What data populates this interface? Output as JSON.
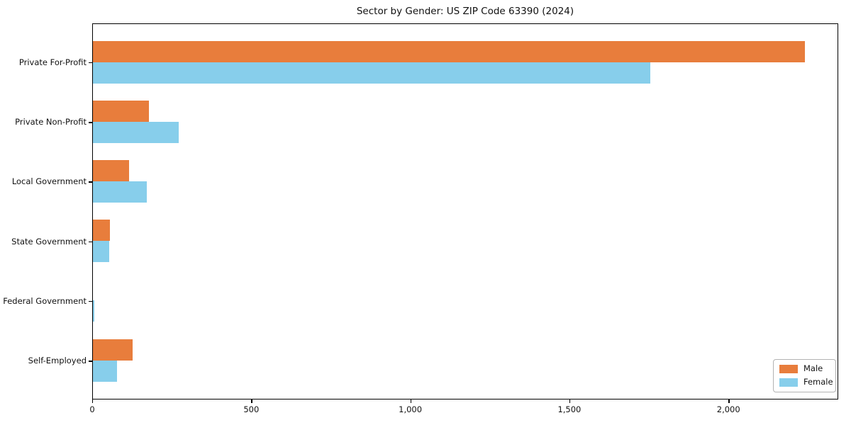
{
  "chart_data": {
    "type": "bar",
    "orientation": "horizontal",
    "title": "Sector by Gender: US ZIP Code 63390 (2024)",
    "categories": [
      "Private For-Profit",
      "Private Non-Profit",
      "Local Government",
      "State Government",
      "Federal Government",
      "Self-Employed"
    ],
    "series": [
      {
        "name": "Male",
        "color": "#e87d3c",
        "values": [
          2238,
          175,
          114,
          54,
          0,
          125
        ]
      },
      {
        "name": "Female",
        "color": "#87ceeb",
        "values": [
          1753,
          270,
          170,
          51,
          4,
          76
        ]
      }
    ],
    "xlim": [
      0,
      2345
    ],
    "xticks": [
      0,
      500,
      1000,
      1500,
      2000
    ],
    "xtick_labels": [
      "0",
      "500",
      "1,000",
      "1,500",
      "2,000"
    ],
    "xlabel": "",
    "ylabel": "",
    "grid": false,
    "legend": {
      "position": "lower right",
      "entries": [
        "Male",
        "Female"
      ]
    }
  }
}
